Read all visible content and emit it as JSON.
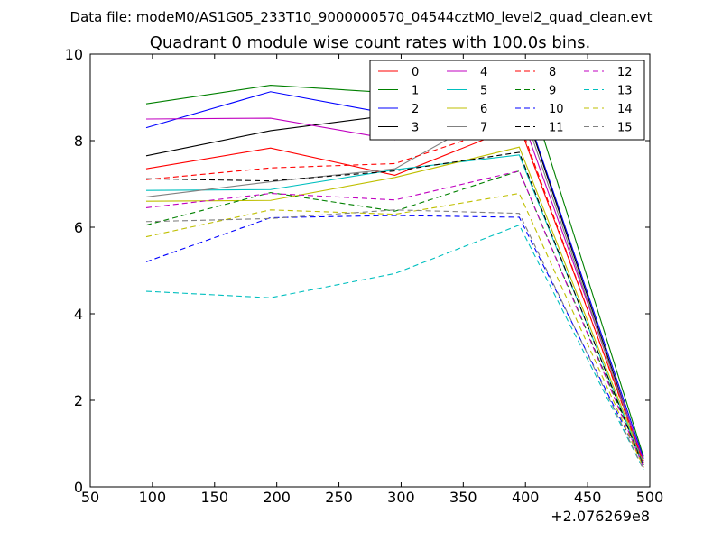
{
  "chart_data": {
    "type": "line",
    "suptitle": "Data file: modeM0/AS1G05_233T10_9000000570_04544cztM0_level2_quad_clean.evt",
    "title": "Quadrant 0 module wise count rates with 100.0s bins.",
    "xlabel": "",
    "ylabel": "",
    "x_offset_label": "+2.076269e8",
    "xlim": [
      50,
      500
    ],
    "ylim": [
      0,
      10
    ],
    "xticks": [
      "50",
      "100",
      "150",
      "200",
      "250",
      "300",
      "350",
      "400",
      "450",
      "500"
    ],
    "yticks": [
      "0",
      "2",
      "4",
      "6",
      "8",
      "10"
    ],
    "legend_position": "top-right",
    "x": [
      95,
      195,
      295,
      395,
      495
    ],
    "series": [
      {
        "name": "0",
        "color": "#ff0000",
        "style": "solid",
        "values": [
          7.35,
          7.83,
          7.2,
          8.35,
          0.6
        ]
      },
      {
        "name": "1",
        "color": "#008000",
        "style": "solid",
        "values": [
          8.85,
          9.28,
          9.1,
          9.85,
          0.7
        ]
      },
      {
        "name": "2",
        "color": "#0000ff",
        "style": "solid",
        "values": [
          8.3,
          9.13,
          8.6,
          9.15,
          0.65
        ]
      },
      {
        "name": "3",
        "color": "#000000",
        "style": "solid",
        "values": [
          7.65,
          8.23,
          8.6,
          9.1,
          0.55
        ]
      },
      {
        "name": "4",
        "color": "#c000c0",
        "style": "solid",
        "values": [
          8.5,
          8.52,
          8.02,
          8.7,
          0.6
        ]
      },
      {
        "name": "5",
        "color": "#00bfbf",
        "style": "solid",
        "values": [
          6.85,
          6.87,
          7.33,
          7.67,
          0.5
        ]
      },
      {
        "name": "6",
        "color": "#bfbf00",
        "style": "solid",
        "values": [
          6.6,
          6.62,
          7.15,
          7.85,
          0.55
        ]
      },
      {
        "name": "7",
        "color": "#808080",
        "style": "solid",
        "values": [
          6.7,
          7.05,
          7.35,
          8.95,
          0.5
        ]
      },
      {
        "name": "8",
        "color": "#ff0000",
        "style": "dashed",
        "values": [
          7.1,
          7.37,
          7.47,
          8.43,
          0.55
        ]
      },
      {
        "name": "9",
        "color": "#008000",
        "style": "dashed",
        "values": [
          6.05,
          6.8,
          6.37,
          7.3,
          0.5
        ]
      },
      {
        "name": "10",
        "color": "#0000ff",
        "style": "dashed",
        "values": [
          5.2,
          6.22,
          6.27,
          6.23,
          0.5
        ]
      },
      {
        "name": "11",
        "color": "#000000",
        "style": "dashed",
        "values": [
          7.12,
          7.07,
          7.3,
          7.73,
          0.45
        ]
      },
      {
        "name": "12",
        "color": "#c000c0",
        "style": "dashed",
        "values": [
          6.45,
          6.78,
          6.63,
          7.3,
          0.45
        ]
      },
      {
        "name": "13",
        "color": "#00bfbf",
        "style": "dashed",
        "values": [
          4.52,
          4.37,
          4.93,
          6.05,
          0.4
        ]
      },
      {
        "name": "14",
        "color": "#bfbf00",
        "style": "dashed",
        "values": [
          5.78,
          6.4,
          6.3,
          6.78,
          0.45
        ]
      },
      {
        "name": "15",
        "color": "#808080",
        "style": "dashed",
        "values": [
          6.13,
          6.2,
          6.4,
          6.32,
          0.4
        ]
      }
    ]
  }
}
